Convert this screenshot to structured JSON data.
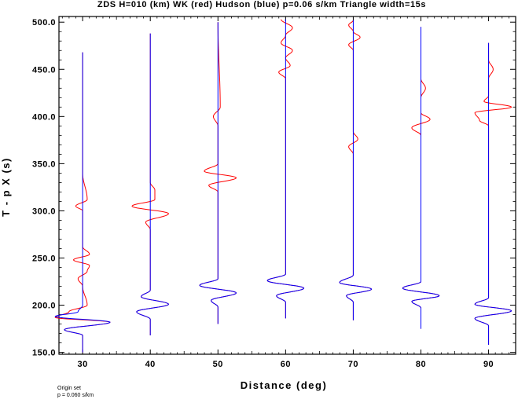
{
  "chart_data": {
    "type": "line",
    "title": "ZDS H=010 (km) WK (red) Hudson (blue) p=0.06 s/km Triangle width=15s",
    "xlabel": "Distance (deg)",
    "ylabel": "T - p X (s)",
    "xlim": [
      26.5,
      94
    ],
    "ylim": [
      148,
      506
    ],
    "xticks": [
      30,
      40,
      50,
      60,
      70,
      80,
      90
    ],
    "xtick_labels": [
      "30",
      "40",
      "50",
      "60",
      "70",
      "80",
      "90"
    ],
    "yticks": [
      150,
      200,
      250,
      300,
      350,
      400,
      450,
      500
    ],
    "ytick_labels": [
      "150.0",
      "200.0",
      "250.0",
      "300.0",
      "350.0",
      "400.0",
      "450.0",
      "500.0"
    ],
    "grid": false,
    "series": [
      {
        "name": "WK",
        "color": "#ff0000"
      },
      {
        "name": "Hudson",
        "color": "#0000ff"
      }
    ],
    "traces": [
      {
        "distance": 30,
        "t_start": 150,
        "t_end": 468,
        "red": [
          [
            152,
            0
          ],
          [
            168,
            0
          ],
          [
            174,
            -4
          ],
          [
            182,
            6
          ],
          [
            187,
            -6
          ],
          [
            193,
            -3
          ],
          [
            200,
            1
          ],
          [
            220,
            0
          ],
          [
            228,
            -1
          ],
          [
            236,
            1
          ],
          [
            242,
            1.5
          ],
          [
            248,
            -2
          ],
          [
            254,
            1.5
          ],
          [
            262,
            0
          ],
          [
            300,
            0
          ],
          [
            305,
            -1.5
          ],
          [
            312,
            1
          ],
          [
            340,
            0
          ],
          [
            468,
            0
          ]
        ],
        "blue": [
          [
            152,
            0
          ],
          [
            168,
            0
          ],
          [
            174,
            -4
          ],
          [
            182,
            6
          ],
          [
            188,
            -6
          ],
          [
            193,
            -1
          ],
          [
            200,
            0
          ],
          [
            468,
            0
          ]
        ]
      },
      {
        "distance": 40,
        "t_start": 168,
        "t_end": 488,
        "red": [
          [
            168,
            0
          ],
          [
            185,
            0
          ],
          [
            193,
            -3
          ],
          [
            201,
            4
          ],
          [
            209,
            -2
          ],
          [
            216,
            0
          ],
          [
            280,
            0
          ],
          [
            288,
            -1
          ],
          [
            297,
            4
          ],
          [
            305,
            -4
          ],
          [
            312,
            1
          ],
          [
            322,
            1
          ],
          [
            330,
            0
          ],
          [
            488,
            0
          ]
        ],
        "blue": [
          [
            168,
            0
          ],
          [
            185,
            0
          ],
          [
            193,
            -3
          ],
          [
            201,
            4
          ],
          [
            209,
            -2
          ],
          [
            216,
            0
          ],
          [
            488,
            0
          ]
        ]
      },
      {
        "distance": 50,
        "t_start": 180,
        "t_end": 500,
        "red": [
          [
            180,
            0
          ],
          [
            198,
            0
          ],
          [
            205,
            -1.5
          ],
          [
            213,
            4
          ],
          [
            221,
            -4
          ],
          [
            228,
            0
          ],
          [
            320,
            0
          ],
          [
            327,
            -2
          ],
          [
            335,
            4
          ],
          [
            342,
            -3
          ],
          [
            350,
            0
          ],
          [
            390,
            0
          ],
          [
            400,
            -1
          ],
          [
            410,
            0.5
          ],
          [
            500,
            0
          ]
        ],
        "blue": [
          [
            180,
            0
          ],
          [
            198,
            0
          ],
          [
            205,
            -1.5
          ],
          [
            213,
            4
          ],
          [
            221,
            -4
          ],
          [
            228,
            0
          ],
          [
            500,
            0
          ]
        ]
      },
      {
        "distance": 60,
        "t_start": 186,
        "t_end": 503,
        "red": [
          [
            186,
            0
          ],
          [
            203,
            0
          ],
          [
            210,
            -2
          ],
          [
            218,
            4
          ],
          [
            226,
            -4
          ],
          [
            233,
            0
          ],
          [
            440,
            0
          ],
          [
            447,
            -1.5
          ],
          [
            454,
            1
          ],
          [
            462,
            0
          ],
          [
            470,
            1.5
          ],
          [
            478,
            -1
          ],
          [
            486,
            0
          ],
          [
            494,
            1.5
          ],
          [
            503,
            -1
          ]
        ],
        "blue": [
          [
            186,
            0
          ],
          [
            203,
            0
          ],
          [
            210,
            -2
          ],
          [
            218,
            4
          ],
          [
            226,
            -4
          ],
          [
            233,
            0
          ],
          [
            503,
            0
          ]
        ]
      },
      {
        "distance": 70,
        "t_start": 184,
        "t_end": 502,
        "red": [
          [
            184,
            0
          ],
          [
            203,
            0
          ],
          [
            210,
            -1.5
          ],
          [
            217,
            4
          ],
          [
            224,
            -3
          ],
          [
            232,
            0
          ],
          [
            360,
            0
          ],
          [
            368,
            -1
          ],
          [
            376,
            1
          ],
          [
            384,
            0
          ],
          [
            470,
            0
          ],
          [
            476,
            -1
          ],
          [
            484,
            1.5
          ],
          [
            490,
            0
          ],
          [
            497,
            -1
          ],
          [
            502,
            0
          ]
        ],
        "blue": [
          [
            184,
            0
          ],
          [
            203,
            0
          ],
          [
            210,
            -1.5
          ],
          [
            217,
            4
          ],
          [
            224,
            -3
          ],
          [
            232,
            0
          ],
          [
            502,
            0
          ]
        ]
      },
      {
        "distance": 80,
        "t_start": 175,
        "t_end": 495,
        "red": [
          [
            175,
            0
          ],
          [
            197,
            0
          ],
          [
            204,
            -2
          ],
          [
            210,
            4
          ],
          [
            218,
            -4
          ],
          [
            225,
            0
          ],
          [
            380,
            0
          ],
          [
            388,
            -2
          ],
          [
            397,
            2
          ],
          [
            404,
            0
          ],
          [
            420,
            0
          ],
          [
            430,
            1
          ],
          [
            440,
            0
          ],
          [
            495,
            0
          ]
        ],
        "blue": [
          [
            175,
            0
          ],
          [
            197,
            0
          ],
          [
            204,
            -2
          ],
          [
            210,
            4
          ],
          [
            218,
            -4
          ],
          [
            225,
            0
          ],
          [
            495,
            0
          ]
        ]
      },
      {
        "distance": 90,
        "t_start": 158,
        "t_end": 478,
        "red": [
          [
            158,
            0
          ],
          [
            178,
            0
          ],
          [
            186,
            -3
          ],
          [
            194,
            5
          ],
          [
            201,
            -3
          ],
          [
            208,
            0
          ],
          [
            390,
            0
          ],
          [
            396,
            -2
          ],
          [
            404,
            -3
          ],
          [
            410,
            5
          ],
          [
            416,
            -1
          ],
          [
            422,
            0
          ],
          [
            440,
            0
          ],
          [
            450,
            1
          ],
          [
            460,
            0
          ],
          [
            478,
            0
          ]
        ],
        "blue": [
          [
            158,
            0
          ],
          [
            178,
            0
          ],
          [
            186,
            -3
          ],
          [
            194,
            5
          ],
          [
            201,
            -3
          ],
          [
            208,
            0
          ],
          [
            478,
            0
          ]
        ]
      }
    ]
  },
  "footer": {
    "line1": "Origin set",
    "line2": "p = 0.060 s/km"
  }
}
